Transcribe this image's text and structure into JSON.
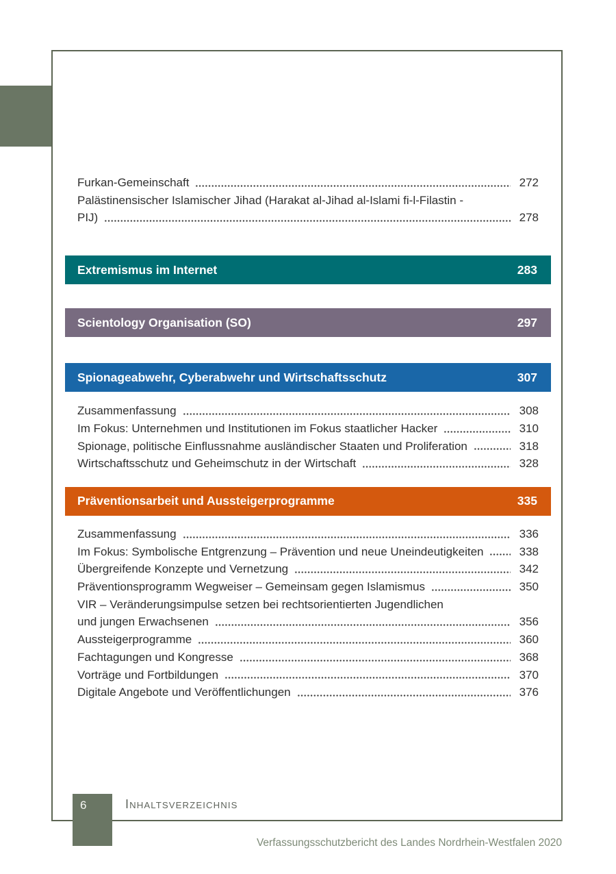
{
  "colors": {
    "frame_border": "#5c6553",
    "tab_olive": "#6a7664",
    "teal": "#006e73",
    "purple": "#786b80",
    "blue": "#1a67a8",
    "orange": "#d4590e",
    "footer_text": "#5f645c",
    "report_title_green": "#7d8a77"
  },
  "toc": {
    "groups": [
      {
        "type": "entries",
        "rows": [
          {
            "label": "Furkan-Gemeinschaft",
            "page": "272"
          },
          {
            "label": "Palästinensischer Islamischer Jihad (Harakat al-Jihad al-Islami fi-l-Filastin -",
            "page": null
          },
          {
            "label": "PIJ)",
            "page": "278"
          }
        ]
      },
      {
        "type": "header",
        "label": "Extremismus im Internet",
        "page": "283",
        "color": "#006e73"
      },
      {
        "type": "header",
        "label": "Scientology Organisation (SO)",
        "page": "297",
        "color": "#786b80"
      },
      {
        "type": "header",
        "label": "Spionageabwehr, Cyberabwehr und Wirtschaftsschutz",
        "page": "307",
        "color": "#1a67a8"
      },
      {
        "type": "entries",
        "rows": [
          {
            "label": "Zusammenfassung",
            "page": "308"
          },
          {
            "label": "Im Fokus: Unternehmen und Institutionen im Fokus staatlicher Hacker",
            "page": "310"
          },
          {
            "label": "Spionage, politische Einflussnahme ausländischer Staaten und Proliferation",
            "page": "318"
          },
          {
            "label": "Wirtschaftsschutz und Geheimschutz in der Wirtschaft",
            "page": "328"
          }
        ]
      },
      {
        "type": "header",
        "label": "Präventionsarbeit und Aussteigerprogramme",
        "page": "335",
        "color": "#d4590e"
      },
      {
        "type": "entries",
        "rows": [
          {
            "label": "Zusammenfassung",
            "page": "336"
          },
          {
            "label": "Im Fokus: Symbolische Entgrenzung – Prävention und neue Uneindeutigkeiten",
            "page": "338"
          },
          {
            "label": "Übergreifende Konzepte und Vernetzung",
            "page": "342"
          },
          {
            "label": "Präventionsprogramm Wegweiser – Gemeinsam gegen Islamismus",
            "page": "350"
          },
          {
            "label": "VIR – Veränderungsimpulse setzen bei rechtsorientierten Jugendlichen",
            "page": null
          },
          {
            "label": "und jungen Erwachsenen",
            "page": "356"
          },
          {
            "label": "Aussteigerprogramme",
            "page": "360"
          },
          {
            "label": "Fachtagungen und Kongresse",
            "page": "368"
          },
          {
            "label": "Vorträge und Fortbildungen",
            "page": "370"
          },
          {
            "label": "Digitale Angebote und Veröffentlichungen",
            "page": "376"
          }
        ]
      }
    ]
  },
  "footer": {
    "page_number": "6",
    "section_label": "Inhaltsverzeichnis",
    "report_title": "Verfassungsschutzbericht des Landes Nordrhein-Westfalen 2020"
  }
}
